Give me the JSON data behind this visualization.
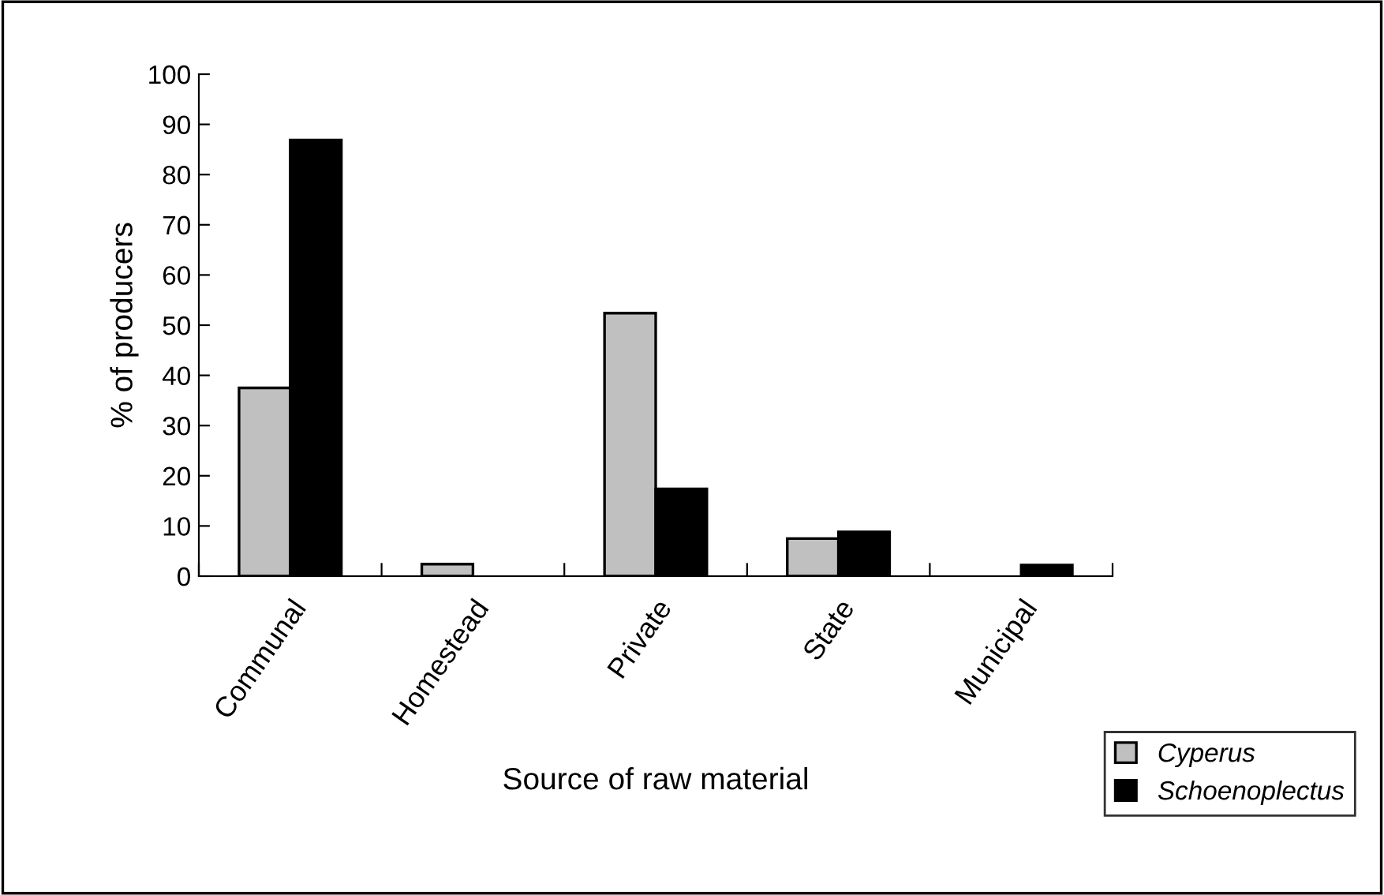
{
  "chart_data": {
    "type": "bar",
    "xlabel": "Source of raw material",
    "ylabel": "% of producers",
    "categories": [
      "Communal",
      "Homestead",
      "Private",
      "State",
      "Municipal"
    ],
    "series": [
      {
        "name": "Cyperus",
        "color": "#c0c0c0",
        "values": [
          37.5,
          2.4,
          52.4,
          7.5,
          null
        ]
      },
      {
        "name": "Schoenoplectus",
        "color": "#000000",
        "values": [
          86.9,
          null,
          17.4,
          8.8,
          2.2
        ]
      }
    ],
    "ylim": [
      0,
      100
    ],
    "yticks": [
      0,
      10,
      20,
      30,
      40,
      50,
      60,
      70,
      80,
      90,
      100
    ],
    "grid": false,
    "legend": "bottom right"
  }
}
